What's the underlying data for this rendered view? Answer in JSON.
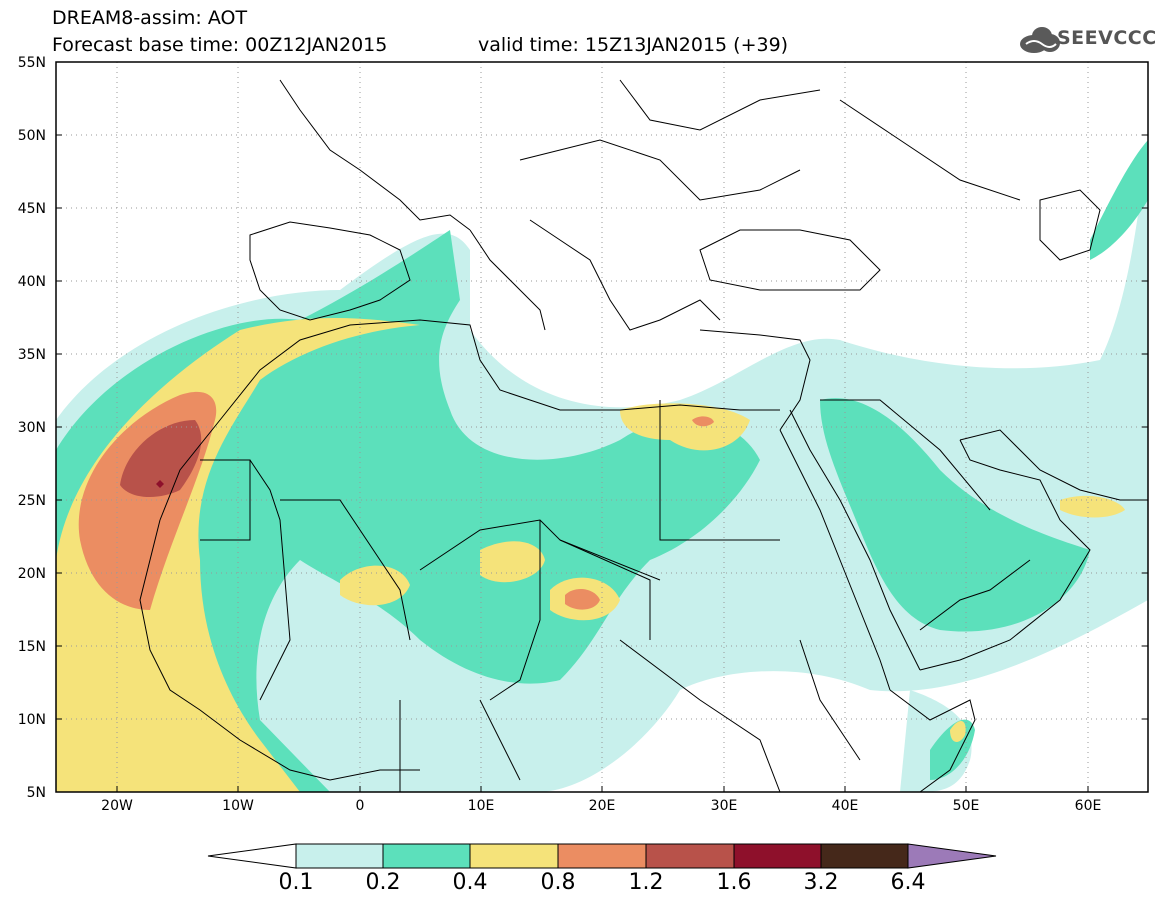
{
  "header": {
    "title": "DREAM8-assim: AOT",
    "forecast_base": "Forecast base time: 00Z12JAN2015",
    "valid_time": "valid time: 15Z13JAN2015 (+39)",
    "logo_text": "SEEVCCC"
  },
  "axes": {
    "lat_labels": [
      "55N",
      "50N",
      "45N",
      "40N",
      "35N",
      "30N",
      "25N",
      "20N",
      "15N",
      "10N",
      "5N"
    ],
    "lon_labels": [
      "20W",
      "10W",
      "0",
      "10E",
      "20E",
      "30E",
      "40E",
      "50E",
      "60E"
    ]
  },
  "colorbar": {
    "labels": [
      "0.1",
      "0.2",
      "0.4",
      "0.8",
      "1.2",
      "1.6",
      "3.2",
      "6.4"
    ],
    "colors": [
      "#c8f0ec",
      "#5ce0bb",
      "#f5e37a",
      "#eb8d62",
      "#b8524a",
      "#8e102b",
      "#45281a",
      "#9c7ab8"
    ]
  }
}
